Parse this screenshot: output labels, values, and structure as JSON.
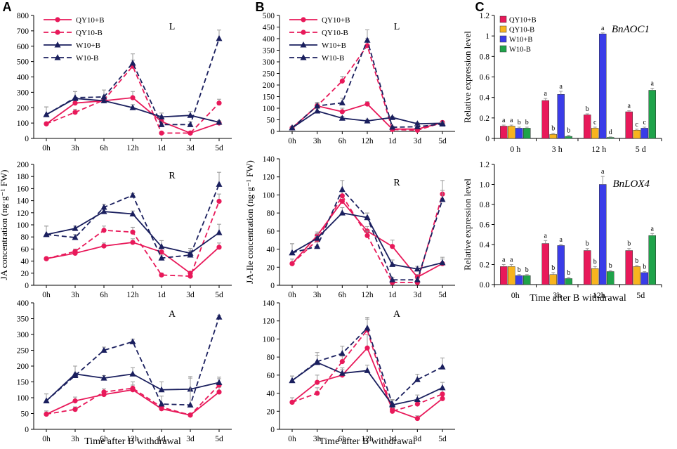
{
  "figure": {
    "panel_labels": [
      "A",
      "B",
      "C"
    ]
  },
  "colors": {
    "pink": "#e8195a",
    "navy": "#1a1f5e",
    "orange": "#f7b41e",
    "blue": "#3a3ce8",
    "green": "#1fa34a",
    "error": "#999999"
  },
  "line_legend": [
    "QY10+B",
    "QY10-B",
    "W10+B",
    "W10-B"
  ],
  "bar_legend": [
    "QY10+B",
    "QY10-B",
    "W10+B",
    "W10-B"
  ],
  "chart_data": [
    {
      "id": "A-L",
      "type": "line",
      "panel": "A",
      "title": "L",
      "categories": [
        "0h",
        "3h",
        "6h",
        "12h",
        "1d",
        "3d",
        "5d"
      ],
      "ylim": [
        0,
        800
      ],
      "yticks": [
        0,
        100,
        200,
        300,
        400,
        500,
        600,
        700,
        800
      ],
      "ylabel": "",
      "xlabel": "",
      "show_xticks": true,
      "legend": true,
      "series": [
        {
          "name": "QY10+B",
          "values": [
            95,
            230,
            245,
            265,
            110,
            35,
            100
          ],
          "errors": [
            10,
            30,
            15,
            40,
            15,
            5,
            15
          ]
        },
        {
          "name": "QY10-B",
          "values": [
            95,
            170,
            250,
            470,
            35,
            35,
            230
          ],
          "errors": [
            10,
            20,
            15,
            40,
            5,
            5,
            25
          ]
        },
        {
          "name": "W10+B",
          "values": [
            155,
            260,
            245,
            200,
            140,
            150,
            105
          ],
          "errors": [
            50,
            45,
            30,
            20,
            25,
            25,
            10
          ]
        },
        {
          "name": "W10-B",
          "values": [
            155,
            265,
            270,
            490,
            90,
            90,
            650
          ],
          "errors": [
            50,
            40,
            45,
            60,
            15,
            20,
            55
          ]
        }
      ]
    },
    {
      "id": "A-R",
      "type": "line",
      "panel": "A",
      "title": "R",
      "categories": [
        "0h",
        "3h",
        "6h",
        "12h",
        "1d",
        "3d",
        "5d"
      ],
      "ylim": [
        0,
        200
      ],
      "yticks": [
        0,
        20,
        40,
        60,
        80,
        100,
        120,
        140,
        160,
        180,
        200
      ],
      "ylabel": "JA concentration (ng·g⁻¹ FW)",
      "xlabel": "",
      "show_xticks": true,
      "legend": false,
      "series": [
        {
          "name": "QY10+B",
          "values": [
            44,
            53,
            65,
            71,
            55,
            20,
            63
          ],
          "errors": [
            2,
            3,
            5,
            6,
            6,
            3,
            7
          ]
        },
        {
          "name": "QY10-B",
          "values": [
            44,
            56,
            91,
            88,
            17,
            15,
            139
          ],
          "errors": [
            2,
            4,
            7,
            8,
            3,
            2,
            12
          ]
        },
        {
          "name": "W10+B",
          "values": [
            84,
            94,
            122,
            118,
            64,
            53,
            87
          ],
          "errors": [
            14,
            4,
            6,
            5,
            10,
            8,
            14
          ]
        },
        {
          "name": "W10-B",
          "values": [
            84,
            79,
            129,
            149,
            45,
            50,
            167
          ],
          "errors": [
            14,
            5,
            5,
            3,
            5,
            7,
            20
          ]
        }
      ]
    },
    {
      "id": "A-A",
      "type": "line",
      "panel": "A",
      "title": "A",
      "categories": [
        "0h",
        "3h",
        "6h",
        "12h",
        "1d",
        "3d",
        "5d"
      ],
      "ylim": [
        0,
        400
      ],
      "yticks": [
        0,
        50,
        100,
        150,
        200,
        250,
        300,
        350,
        400
      ],
      "ylabel": "",
      "xlabel": "Time after B withdrawal",
      "show_xticks": true,
      "legend": false,
      "series": [
        {
          "name": "QY10+B",
          "values": [
            48,
            90,
            110,
            125,
            65,
            45,
            118
          ],
          "errors": [
            10,
            12,
            10,
            15,
            8,
            5,
            15
          ]
        },
        {
          "name": "QY10-B",
          "values": [
            48,
            63,
            118,
            130,
            70,
            45,
            140
          ],
          "errors": [
            10,
            8,
            10,
            20,
            8,
            5,
            25
          ]
        },
        {
          "name": "W10+B",
          "values": [
            90,
            175,
            162,
            175,
            125,
            127,
            148
          ],
          "errors": [
            22,
            25,
            8,
            20,
            25,
            35,
            12
          ]
        },
        {
          "name": "W10-B",
          "values": [
            90,
            170,
            250,
            277,
            80,
            77,
            355
          ],
          "errors": [
            22,
            30,
            10,
            8,
            25,
            90,
            5
          ]
        }
      ]
    },
    {
      "id": "B-L",
      "type": "line",
      "panel": "B",
      "title": "L",
      "categories": [
        "0h",
        "3h",
        "6h",
        "12h",
        "1d",
        "3d",
        "5d"
      ],
      "ylim": [
        0,
        500
      ],
      "yticks": [
        0,
        50,
        100,
        150,
        200,
        250,
        300,
        350,
        400,
        450,
        500
      ],
      "ylabel": "",
      "xlabel": "",
      "show_xticks": true,
      "legend": true,
      "series": [
        {
          "name": "QY10+B",
          "values": [
            15,
            110,
            85,
            118,
            10,
            10,
            38
          ],
          "errors": [
            3,
            10,
            15,
            10,
            3,
            3,
            5
          ]
        },
        {
          "name": "QY10-B",
          "values": [
            15,
            110,
            217,
            370,
            8,
            5,
            38
          ],
          "errors": [
            3,
            15,
            20,
            30,
            2,
            2,
            5
          ]
        },
        {
          "name": "W10+B",
          "values": [
            15,
            88,
            57,
            45,
            60,
            33,
            35
          ],
          "errors": [
            3,
            10,
            8,
            8,
            5,
            5,
            5
          ]
        },
        {
          "name": "W10-B",
          "values": [
            15,
            110,
            123,
            393,
            18,
            20,
            32
          ],
          "errors": [
            3,
            15,
            20,
            45,
            5,
            5,
            5
          ]
        }
      ]
    },
    {
      "id": "B-R",
      "type": "line",
      "panel": "B",
      "title": "R",
      "categories": [
        "0h",
        "3h",
        "6h",
        "12h",
        "1d",
        "3d",
        "5d"
      ],
      "ylim": [
        0,
        140
      ],
      "yticks": [
        0,
        20,
        40,
        60,
        80,
        100,
        120,
        140
      ],
      "ylabel": "JA-Ile concentration (ng·g⁻¹ FW)",
      "xlabel": "",
      "show_xticks": true,
      "legend": false,
      "series": [
        {
          "name": "QY10+B",
          "values": [
            24,
            55,
            93,
            60,
            43,
            9,
            24
          ],
          "errors": [
            5,
            4,
            6,
            5,
            7,
            3,
            5
          ]
        },
        {
          "name": "QY10-B",
          "values": [
            24,
            50,
            99,
            55,
            3,
            3,
            101
          ],
          "errors": [
            5,
            4,
            6,
            5,
            2,
            2,
            15
          ]
        },
        {
          "name": "W10+B",
          "values": [
            36,
            52,
            80,
            75,
            23,
            18,
            25
          ],
          "errors": [
            10,
            5,
            6,
            5,
            5,
            3,
            6
          ]
        },
        {
          "name": "W10-B",
          "values": [
            36,
            43,
            106,
            75,
            6,
            6,
            95
          ],
          "errors": [
            10,
            5,
            10,
            5,
            3,
            2,
            10
          ]
        }
      ]
    },
    {
      "id": "B-A",
      "type": "line",
      "panel": "B",
      "title": "A",
      "categories": [
        "0h",
        "3h",
        "6h",
        "12h",
        "1d",
        "3d",
        "5d"
      ],
      "ylim": [
        0,
        140
      ],
      "yticks": [
        0,
        20,
        40,
        60,
        80,
        100,
        120,
        140
      ],
      "ylabel": "",
      "xlabel": "Time after B withdrawal",
      "show_xticks": true,
      "legend": false,
      "series": [
        {
          "name": "QY10+B",
          "values": [
            30,
            52,
            60,
            90,
            22,
            12,
            34
          ],
          "errors": [
            5,
            8,
            6,
            15,
            5,
            3,
            5
          ]
        },
        {
          "name": "QY10-B",
          "values": [
            30,
            40,
            75,
            110,
            20,
            28,
            39
          ],
          "errors": [
            5,
            6,
            6,
            12,
            4,
            4,
            5
          ]
        },
        {
          "name": "W10+B",
          "values": [
            54,
            74,
            62,
            65,
            27,
            33,
            46
          ],
          "errors": [
            5,
            8,
            6,
            6,
            5,
            5,
            6
          ]
        },
        {
          "name": "W10-B",
          "values": [
            54,
            75,
            84,
            112,
            28,
            55,
            69
          ],
          "errors": [
            5,
            10,
            8,
            12,
            5,
            6,
            10
          ]
        }
      ]
    },
    {
      "id": "C-AOC1",
      "type": "bar",
      "panel": "C",
      "title": "BnAOC1",
      "categories": [
        "0 h",
        "3 h",
        "12 h",
        "5 d"
      ],
      "ylim": [
        0,
        1.2
      ],
      "yticks": [
        "0",
        "0.2",
        "0.4",
        "0.6",
        "0.8",
        "1",
        "1.2"
      ],
      "ylabel": "Relative expression level",
      "xlabel": "",
      "legend": true,
      "series": [
        {
          "name": "QY10+B",
          "values": [
            0.12,
            0.37,
            0.23,
            0.26
          ],
          "errors": [
            0.01,
            0.02,
            0.01,
            0.01
          ],
          "letters": [
            "a",
            "a",
            "b",
            "a"
          ]
        },
        {
          "name": "QY10-B",
          "values": [
            0.12,
            0.04,
            0.1,
            0.08
          ],
          "errors": [
            0.01,
            0.01,
            0.01,
            0.01
          ],
          "letters": [
            "a",
            "b",
            "c",
            "c"
          ]
        },
        {
          "name": "W10+B",
          "values": [
            0.1,
            0.43,
            1.02,
            0.1
          ],
          "errors": [
            0.01,
            0.03,
            0.01,
            0.01
          ],
          "letters": [
            "b",
            "a",
            "a",
            "c"
          ]
        },
        {
          "name": "W10-B",
          "values": [
            0.1,
            0.02,
            0.01,
            0.47
          ],
          "errors": [
            0.01,
            0.01,
            0.005,
            0.02
          ],
          "letters": [
            "b",
            "b",
            "d",
            "a"
          ]
        }
      ]
    },
    {
      "id": "C-LOX4",
      "type": "bar",
      "panel": "C",
      "title": "BnLOX4",
      "categories": [
        "0h",
        "3h",
        "12h",
        "5d"
      ],
      "ylim": [
        0,
        1.2
      ],
      "yticks": [
        "0.0",
        "0.2",
        "0.4",
        "0.6",
        "0.8",
        "1.0",
        "1.2"
      ],
      "ylabel": "Relative expression level",
      "xlabel": "Time after B withdrawal",
      "legend": false,
      "series": [
        {
          "name": "QY10+B",
          "values": [
            0.18,
            0.41,
            0.34,
            0.34
          ],
          "errors": [
            0.02,
            0.03,
            0.02,
            0.02
          ],
          "letters": [
            "a",
            "a",
            "b",
            "b"
          ]
        },
        {
          "name": "QY10-B",
          "values": [
            0.18,
            0.1,
            0.16,
            0.18
          ],
          "errors": [
            0.02,
            0.02,
            0.02,
            0.01
          ],
          "letters": [
            "a",
            "b",
            "b",
            "b"
          ]
        },
        {
          "name": "W10+B",
          "values": [
            0.09,
            0.39,
            1.0,
            0.12
          ],
          "errors": [
            0.01,
            0.01,
            0.08,
            0.01
          ],
          "letters": [
            "b",
            "a",
            "a",
            "b"
          ]
        },
        {
          "name": "W10-B",
          "values": [
            0.09,
            0.06,
            0.13,
            0.49
          ],
          "errors": [
            0.01,
            0.01,
            0.01,
            0.02
          ],
          "letters": [
            "b",
            "b",
            "b",
            "a"
          ]
        }
      ]
    }
  ]
}
